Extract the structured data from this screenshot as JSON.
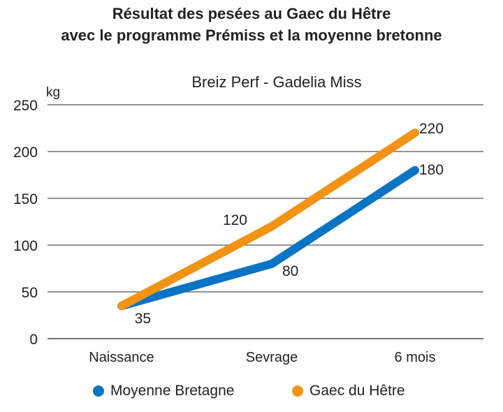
{
  "title_lines": [
    "Résultat des pesées au Gaec du Hêtre",
    "avec le programme Prémiss et la moyenne bretonne"
  ],
  "chart_data": {
    "type": "line",
    "subtitle": "Breiz Perf - Gadelia Miss",
    "ylabel": "kg",
    "categories": [
      "Naissance",
      "Sevrage",
      "6 mois"
    ],
    "ylim": [
      0,
      250
    ],
    "yticks": [
      0,
      50,
      100,
      150,
      200,
      250
    ],
    "grid": true,
    "legend_position": "bottom",
    "series": [
      {
        "name": "Moyenne Bretagne",
        "values": [
          35,
          80,
          180
        ],
        "labels": [
          "35",
          "80",
          "180"
        ],
        "color": "#0b74c4"
      },
      {
        "name": "Gaec du Hêtre",
        "values": [
          35,
          120,
          220
        ],
        "labels": [
          "",
          "120",
          "220"
        ],
        "color": "#f39314"
      }
    ]
  }
}
